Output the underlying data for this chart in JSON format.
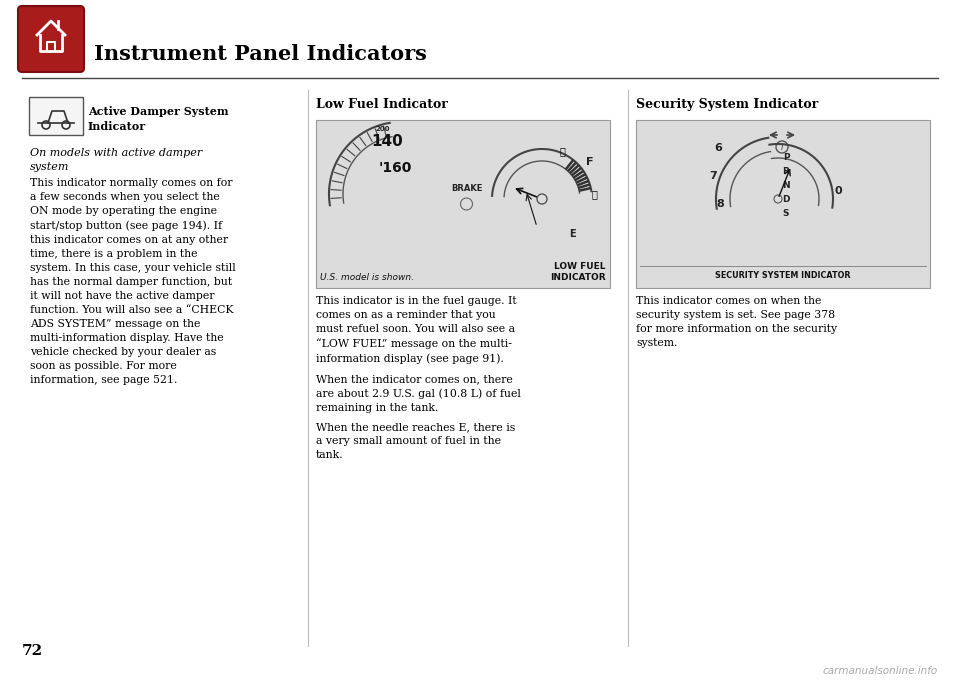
{
  "page_bg": "#ffffff",
  "header_title": "Instrument Panel Indicators",
  "page_number": "72",
  "col1_title_bold": "Active Damper System\nIndicator",
  "col1_italic": "On models with active damper\nsystem",
  "col1_body": "This indicator normally comes on for\na few seconds when you select the\nON mode by operating the engine\nstart/stop button (see page 194). If\nthis indicator comes on at any other\ntime, there is a problem in the\nsystem. In this case, your vehicle still\nhas the normal damper function, but\nit will not have the active damper\nfunction. You will also see a “CHECK\nADS SYSTEM” message on the\nmulti-information display. Have the\nvehicle checked by your dealer as\nsoon as possible. For more\ninformation, see page 521.",
  "col2_title": "Low Fuel Indicator",
  "col2_caption": "U.S. model is shown.",
  "col2_indicator_label": "LOW FUEL\nINDICATOR",
  "col2_body1": "This indicator is in the fuel gauge. It\ncomes on as a reminder that you\nmust refuel soon. You will also see a\n“LOW FUEL” message on the multi-\ninformation display (see page 91).",
  "col2_body2": "When the indicator comes on, there\nare about 2.9 U.S. gal (10.8 L) of fuel\nremaining in the tank.",
  "col2_body3": "When the needle reaches E, there is\na very small amount of fuel in the\ntank.",
  "col3_title": "Security System Indicator",
  "col3_indicator_label": "SECURITY SYSTEM INDICATOR",
  "col3_body": "This indicator comes on when the\nsecurity system is set. See page 378\nfor more information on the security\nsystem.",
  "text_color": "#000000",
  "image_bg": "#dcdcdc",
  "watermark": "carmanualsonline.info",
  "icon_red_top": "#b22020",
  "icon_red_bot": "#8b1010"
}
